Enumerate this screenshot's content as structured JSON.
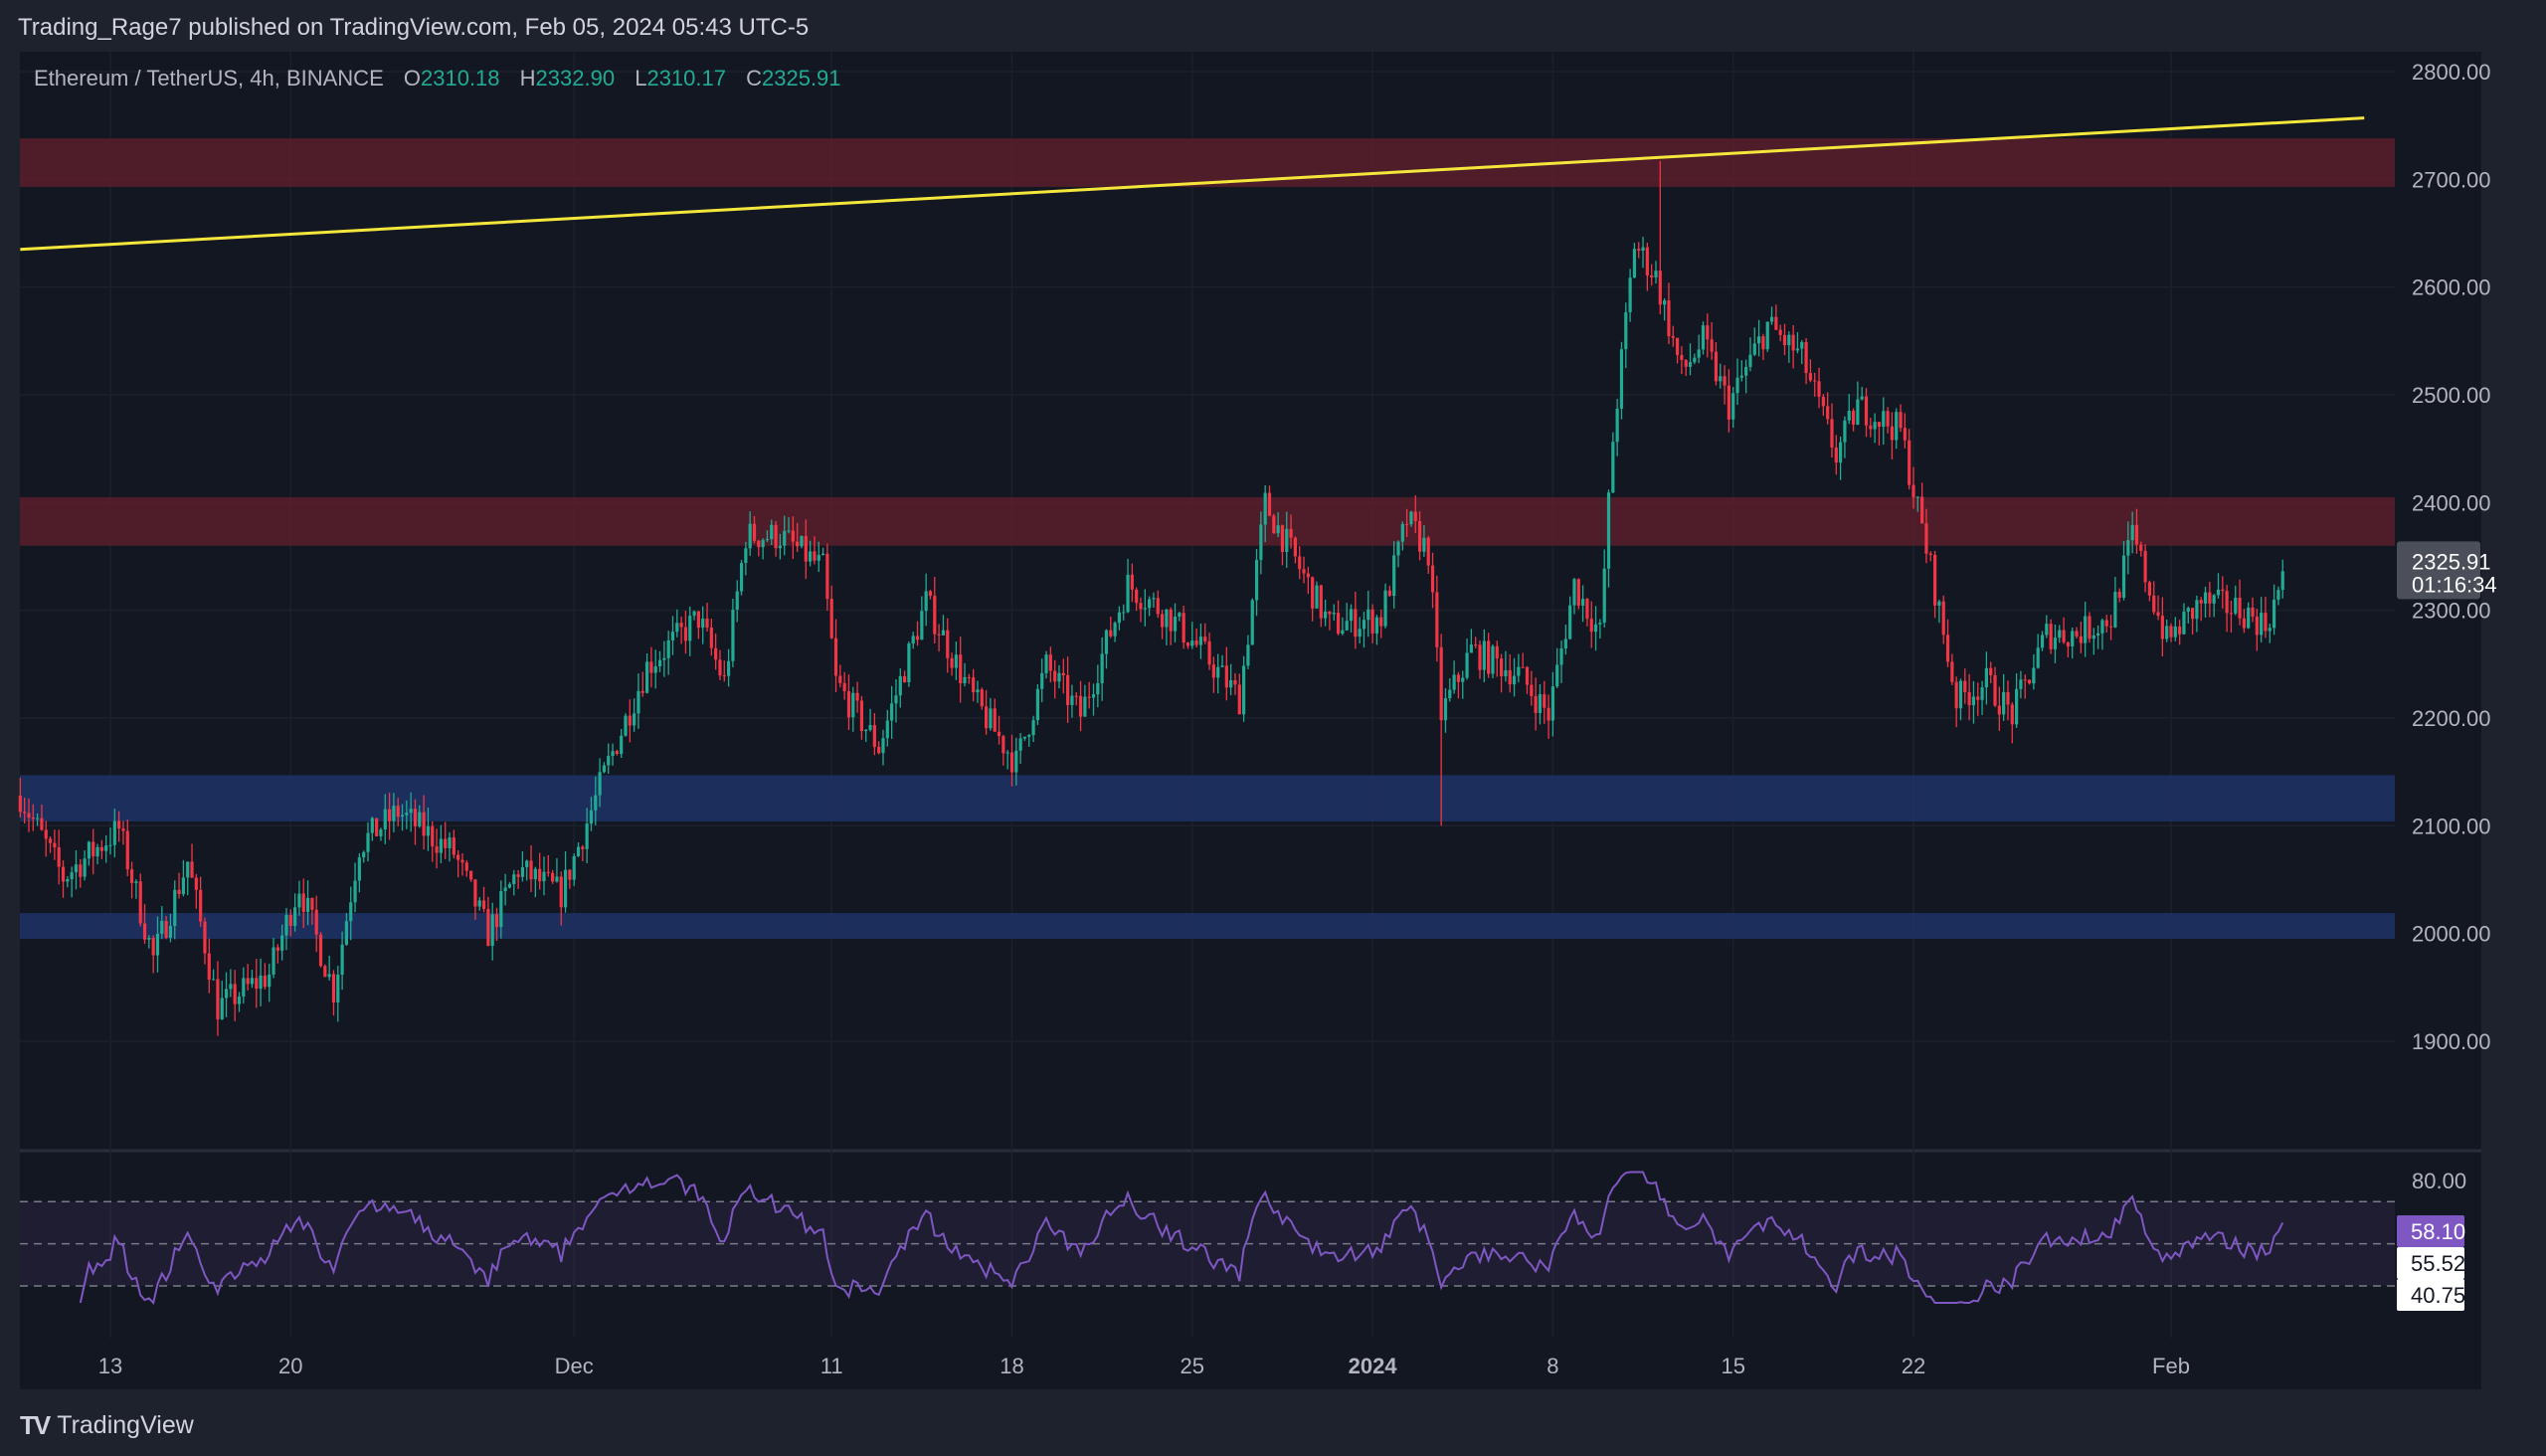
{
  "header": {
    "published": "Trading_Rage7 published on TradingView.com, Feb 05, 2024 05:43 UTC-5"
  },
  "legend": {
    "symbol": "Ethereum / TetherUS, 4h, BINANCE",
    "o_label": "O",
    "o": "2310.18",
    "h_label": "H",
    "h": "2332.90",
    "l_label": "L",
    "l": "2310.17",
    "c_label": "C",
    "c": "2325.91"
  },
  "price_badge": {
    "price": "2325.91",
    "countdown": "01:16:34"
  },
  "rsi_badges": [
    "58.10",
    "55.52",
    "40.75"
  ],
  "footer": {
    "brand": "TradingView",
    "logo": "TV"
  },
  "colors": {
    "up": "#22ab94",
    "down": "#f23645",
    "trendline": "#f5e63c",
    "resistance_zone": "#5a1f2a",
    "support_zone": "#1e3366",
    "rsi": "#7e57c2",
    "background": "#131722"
  },
  "chart_data": [
    {
      "type": "candlestick",
      "timeframe": "4h",
      "ylim": [
        1830,
        2830
      ],
      "y_ticks": [
        "2800.00",
        "2700.00",
        "2600.00",
        "2500.00",
        "2400.00",
        "2300.00",
        "2200.00",
        "2100.00",
        "2000.00",
        "1900.00"
      ],
      "y_tick_values": [
        2800,
        2700,
        2600,
        2500,
        2400,
        2300,
        2200,
        2100,
        2000,
        1900
      ],
      "x_ticks": [
        {
          "label": "13",
          "date": "2023-11-13"
        },
        {
          "label": "20",
          "date": "2023-11-20"
        },
        {
          "label": "Dec",
          "date": "2023-12-01"
        },
        {
          "label": "11",
          "date": "2023-12-11"
        },
        {
          "label": "18",
          "date": "2023-12-18"
        },
        {
          "label": "25",
          "date": "2023-12-25"
        },
        {
          "label": "2024",
          "date": "2024-01-01",
          "bold": true
        },
        {
          "label": "8",
          "date": "2024-01-08"
        },
        {
          "label": "15",
          "date": "2024-01-15"
        },
        {
          "label": "22",
          "date": "2024-01-22"
        },
        {
          "label": "Feb",
          "date": "2024-02-01"
        }
      ],
      "approx_close_path": [
        [
          "2023-11-09T12",
          2128
        ],
        [
          "2023-11-11T04",
          2052
        ],
        [
          "2023-11-13T08",
          2097
        ],
        [
          "2023-11-14T16",
          1977
        ],
        [
          "2023-11-16T00",
          2067
        ],
        [
          "2023-11-17T04",
          1932
        ],
        [
          "2023-11-19T04",
          1962
        ],
        [
          "2023-11-20T08",
          2045
        ],
        [
          "2023-11-21T16",
          1947
        ],
        [
          "2023-11-22T16",
          2082
        ],
        [
          "2023-11-24T04",
          2113
        ],
        [
          "2023-11-26T08",
          2075
        ],
        [
          "2023-11-27T16",
          2000
        ],
        [
          "2023-11-28T20",
          2060
        ],
        [
          "2023-11-30T12",
          2037
        ],
        [
          "2023-12-02T08",
          2158
        ],
        [
          "2023-12-03T20",
          2248
        ],
        [
          "2023-12-05T20",
          2293
        ],
        [
          "2023-12-06T20",
          2233
        ],
        [
          "2023-12-07T16",
          2369
        ],
        [
          "2023-12-09T00",
          2369
        ],
        [
          "2023-12-10T16",
          2339
        ],
        [
          "2023-12-11T04",
          2233
        ],
        [
          "2023-12-12T20",
          2173
        ],
        [
          "2023-12-14T16",
          2308
        ],
        [
          "2023-12-16T12",
          2218
        ],
        [
          "2023-12-18T04",
          2158
        ],
        [
          "2023-12-19T08",
          2248
        ],
        [
          "2023-12-20T16",
          2203
        ],
        [
          "2023-12-22T12",
          2324
        ],
        [
          "2023-12-24T04",
          2293
        ],
        [
          "2023-12-25T08",
          2263
        ],
        [
          "2023-12-26T20",
          2218
        ],
        [
          "2023-12-27T20",
          2399
        ],
        [
          "2023-12-29T04",
          2339
        ],
        [
          "2023-12-30T08",
          2286
        ],
        [
          "2024-01-01T08",
          2293
        ],
        [
          "2024-01-02T08",
          2384
        ],
        [
          "2024-01-03T04",
          2354
        ],
        [
          "2024-01-03T16",
          2203
        ],
        [
          "2024-01-04T20",
          2263
        ],
        [
          "2024-01-06T16",
          2241
        ],
        [
          "2024-01-07T20",
          2203
        ],
        [
          "2024-01-08T20",
          2324
        ],
        [
          "2024-01-09T20",
          2278
        ],
        [
          "2024-01-10T08",
          2459
        ],
        [
          "2024-01-11T04",
          2640
        ],
        [
          "2024-01-12T00",
          2610
        ],
        [
          "2024-01-13T00",
          2520
        ],
        [
          "2024-01-13T20",
          2550
        ],
        [
          "2024-01-14T20",
          2490
        ],
        [
          "2024-01-16T08",
          2565
        ],
        [
          "2024-01-17T16",
          2535
        ],
        [
          "2024-01-19T00",
          2444
        ],
        [
          "2024-01-19T20",
          2490
        ],
        [
          "2024-01-21T12",
          2467
        ],
        [
          "2024-01-22T16",
          2339
        ],
        [
          "2024-01-23T16",
          2218
        ],
        [
          "2024-01-24T20",
          2233
        ],
        [
          "2024-01-25T20",
          2203
        ],
        [
          "2024-01-27T04",
          2278
        ],
        [
          "2024-01-28T08",
          2278
        ],
        [
          "2024-01-29T16",
          2293
        ],
        [
          "2024-01-30T12",
          2369
        ],
        [
          "2024-01-31T20",
          2271
        ],
        [
          "2024-02-02T04",
          2308
        ],
        [
          "2024-02-03T16",
          2301
        ],
        [
          "2024-02-04T16",
          2286
        ],
        [
          "2024-02-05T08",
          2325.91
        ]
      ],
      "notable_extremes": [
        {
          "date": "2024-01-12T04",
          "high": 2717
        },
        {
          "date": "2024-01-03T16",
          "low": 2100
        },
        {
          "date": "2023-11-17T04",
          "low": 1905
        }
      ],
      "last_candle": {
        "open": 2310.18,
        "high": 2332.9,
        "low": 2310.17,
        "close": 2325.91
      },
      "zones": [
        {
          "kind": "resistance",
          "from": 2693,
          "to": 2738
        },
        {
          "kind": "resistance",
          "from": 2360,
          "to": 2405
        },
        {
          "kind": "support",
          "from": 2104,
          "to": 2147
        },
        {
          "kind": "support",
          "from": 1995,
          "to": 2019
        }
      ],
      "trendline": {
        "start": [
          "2023-11-09T12",
          2635
        ],
        "end": [
          "2024-02-08T12",
          2757
        ]
      }
    },
    {
      "type": "line",
      "indicator": "RSI",
      "ylim": [
        20,
        85
      ],
      "y_ticks": [
        "80.00"
      ],
      "bands": [
        70,
        50,
        30
      ],
      "current": 58.1
    }
  ]
}
